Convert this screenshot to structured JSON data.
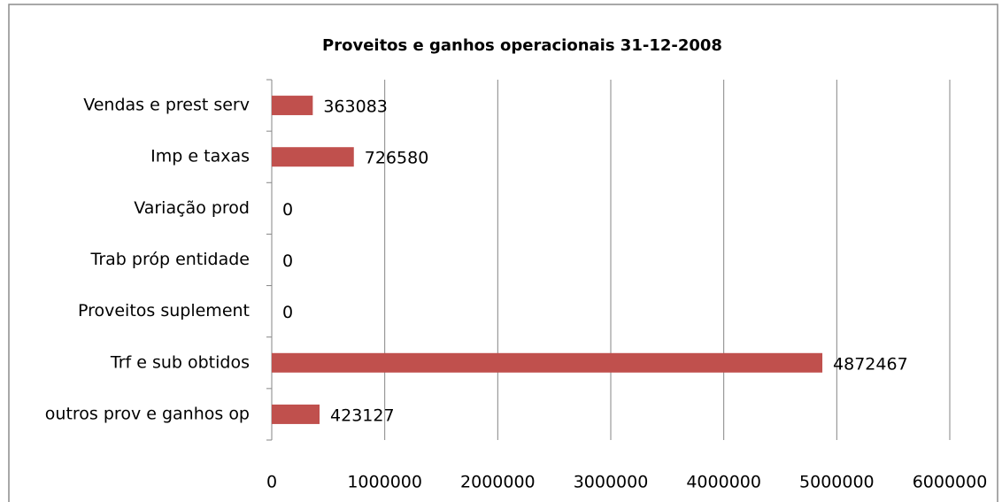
{
  "chart_data": {
    "type": "bar",
    "orientation": "horizontal",
    "title": "Proveitos e ganhos operacionais 31-12-2008",
    "categories": [
      "Vendas e prest serv",
      "Imp e taxas",
      "Variação prod",
      "Trab próp entidade",
      "Proveitos suplement",
      "Trf e sub obtidos",
      "outros prov e ganhos op"
    ],
    "values": [
      363083,
      726580,
      0,
      0,
      0,
      4872467,
      423127
    ],
    "color": "#c0504d",
    "xlim": [
      0,
      6000000
    ],
    "xticks": [
      0,
      1000000,
      2000000,
      3000000,
      4000000,
      5000000,
      6000000
    ],
    "grid": true
  }
}
